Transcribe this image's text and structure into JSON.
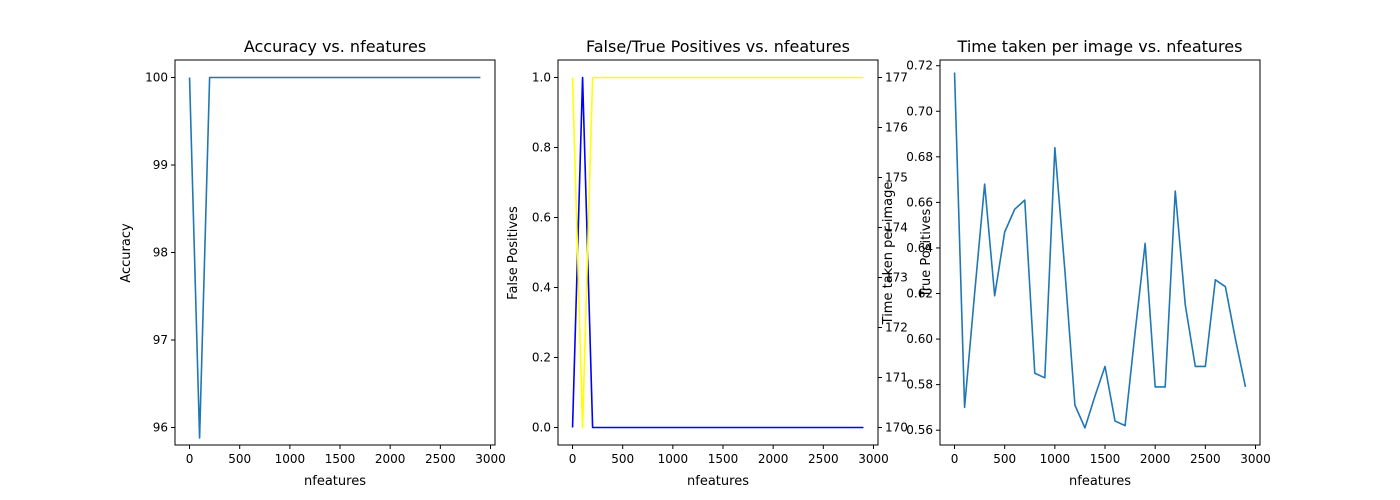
{
  "chart_data": [
    {
      "type": "line",
      "title": "Accuracy vs. nfeatures",
      "xlabel": "nfeatures",
      "ylabel": "Accuracy",
      "xlim": [
        -145,
        3045
      ],
      "ylim": [
        95.8,
        100.2
      ],
      "xticks": [
        0,
        500,
        1000,
        1500,
        2000,
        2500,
        3000
      ],
      "yticks": [
        96,
        97,
        98,
        99,
        100
      ],
      "grid": false,
      "series": [
        {
          "color": "#1f77b4",
          "x": [
            0,
            100,
            200,
            300,
            400,
            500,
            600,
            700,
            800,
            900,
            1000,
            1100,
            1200,
            1300,
            1400,
            1500,
            1600,
            1700,
            1800,
            1900,
            2000,
            2100,
            2200,
            2300,
            2400,
            2500,
            2600,
            2700,
            2800,
            2900
          ],
          "y": [
            100,
            95.88,
            100,
            100,
            100,
            100,
            100,
            100,
            100,
            100,
            100,
            100,
            100,
            100,
            100,
            100,
            100,
            100,
            100,
            100,
            100,
            100,
            100,
            100,
            100,
            100,
            100,
            100,
            100,
            100
          ]
        }
      ]
    },
    {
      "type": "line",
      "title": "False/True Positives vs. nfeatures",
      "xlabel": "nfeatures",
      "ylabel": "False Positives",
      "ylabel_right": "True Positives",
      "ylabel_right_overlap": "Time taken per image",
      "xlim": [
        -145,
        3045
      ],
      "ylim": [
        -0.05,
        1.05
      ],
      "ylim_right": [
        169.65,
        177.35
      ],
      "xticks": [
        0,
        500,
        1000,
        1500,
        2000,
        2500,
        3000
      ],
      "yticks": [
        0.0,
        0.2,
        0.4,
        0.6,
        0.8,
        1.0
      ],
      "yticks_right": [
        170,
        171,
        172,
        173,
        174,
        175,
        176,
        177
      ],
      "grid": false,
      "series": [
        {
          "axis": "left",
          "color": "#0000ff",
          "x": [
            0,
            100,
            200,
            300,
            400,
            500,
            600,
            700,
            800,
            900,
            1000,
            1100,
            1200,
            1300,
            1400,
            1500,
            1600,
            1700,
            1800,
            1900,
            2000,
            2100,
            2200,
            2300,
            2400,
            2500,
            2600,
            2700,
            2800,
            2900
          ],
          "y": [
            0,
            1,
            0,
            0,
            0,
            0,
            0,
            0,
            0,
            0,
            0,
            0,
            0,
            0,
            0,
            0,
            0,
            0,
            0,
            0,
            0,
            0,
            0,
            0,
            0,
            0,
            0,
            0,
            0,
            0
          ]
        },
        {
          "axis": "right",
          "color": "#ffff00",
          "x": [
            0,
            100,
            200,
            300,
            400,
            500,
            600,
            700,
            800,
            900,
            1000,
            1100,
            1200,
            1300,
            1400,
            1500,
            1600,
            1700,
            1800,
            1900,
            2000,
            2100,
            2200,
            2300,
            2400,
            2500,
            2600,
            2700,
            2800,
            2900
          ],
          "y": [
            177,
            170,
            177,
            177,
            177,
            177,
            177,
            177,
            177,
            177,
            177,
            177,
            177,
            177,
            177,
            177,
            177,
            177,
            177,
            177,
            177,
            177,
            177,
            177,
            177,
            177,
            177,
            177,
            177,
            177
          ]
        }
      ]
    },
    {
      "type": "line",
      "title": "Time taken per image vs. nfeatures",
      "xlabel": "nfeatures",
      "ylabel": "",
      "xlim": [
        -145,
        3045
      ],
      "ylim": [
        0.5535,
        0.7225
      ],
      "xticks": [
        0,
        500,
        1000,
        1500,
        2000,
        2500,
        3000
      ],
      "yticks": [
        0.56,
        0.58,
        0.6,
        0.62,
        0.64,
        0.66,
        0.68,
        0.7,
        0.72
      ],
      "grid": false,
      "series": [
        {
          "color": "#1f77b4",
          "x": [
            0,
            100,
            200,
            300,
            400,
            500,
            600,
            700,
            800,
            900,
            1000,
            1100,
            1200,
            1300,
            1400,
            1500,
            1600,
            1700,
            1800,
            1900,
            2000,
            2100,
            2200,
            2300,
            2400,
            2500,
            2600,
            2700,
            2800,
            2900
          ],
          "y": [
            0.717,
            0.57,
            0.62,
            0.668,
            0.619,
            0.647,
            0.657,
            0.661,
            0.585,
            0.583,
            0.684,
            0.63,
            0.571,
            0.561,
            0.575,
            0.588,
            0.564,
            0.562,
            0.603,
            0.642,
            0.579,
            0.579,
            0.665,
            0.615,
            0.588,
            0.588,
            0.626,
            0.623,
            0.6,
            0.579
          ]
        }
      ]
    }
  ]
}
